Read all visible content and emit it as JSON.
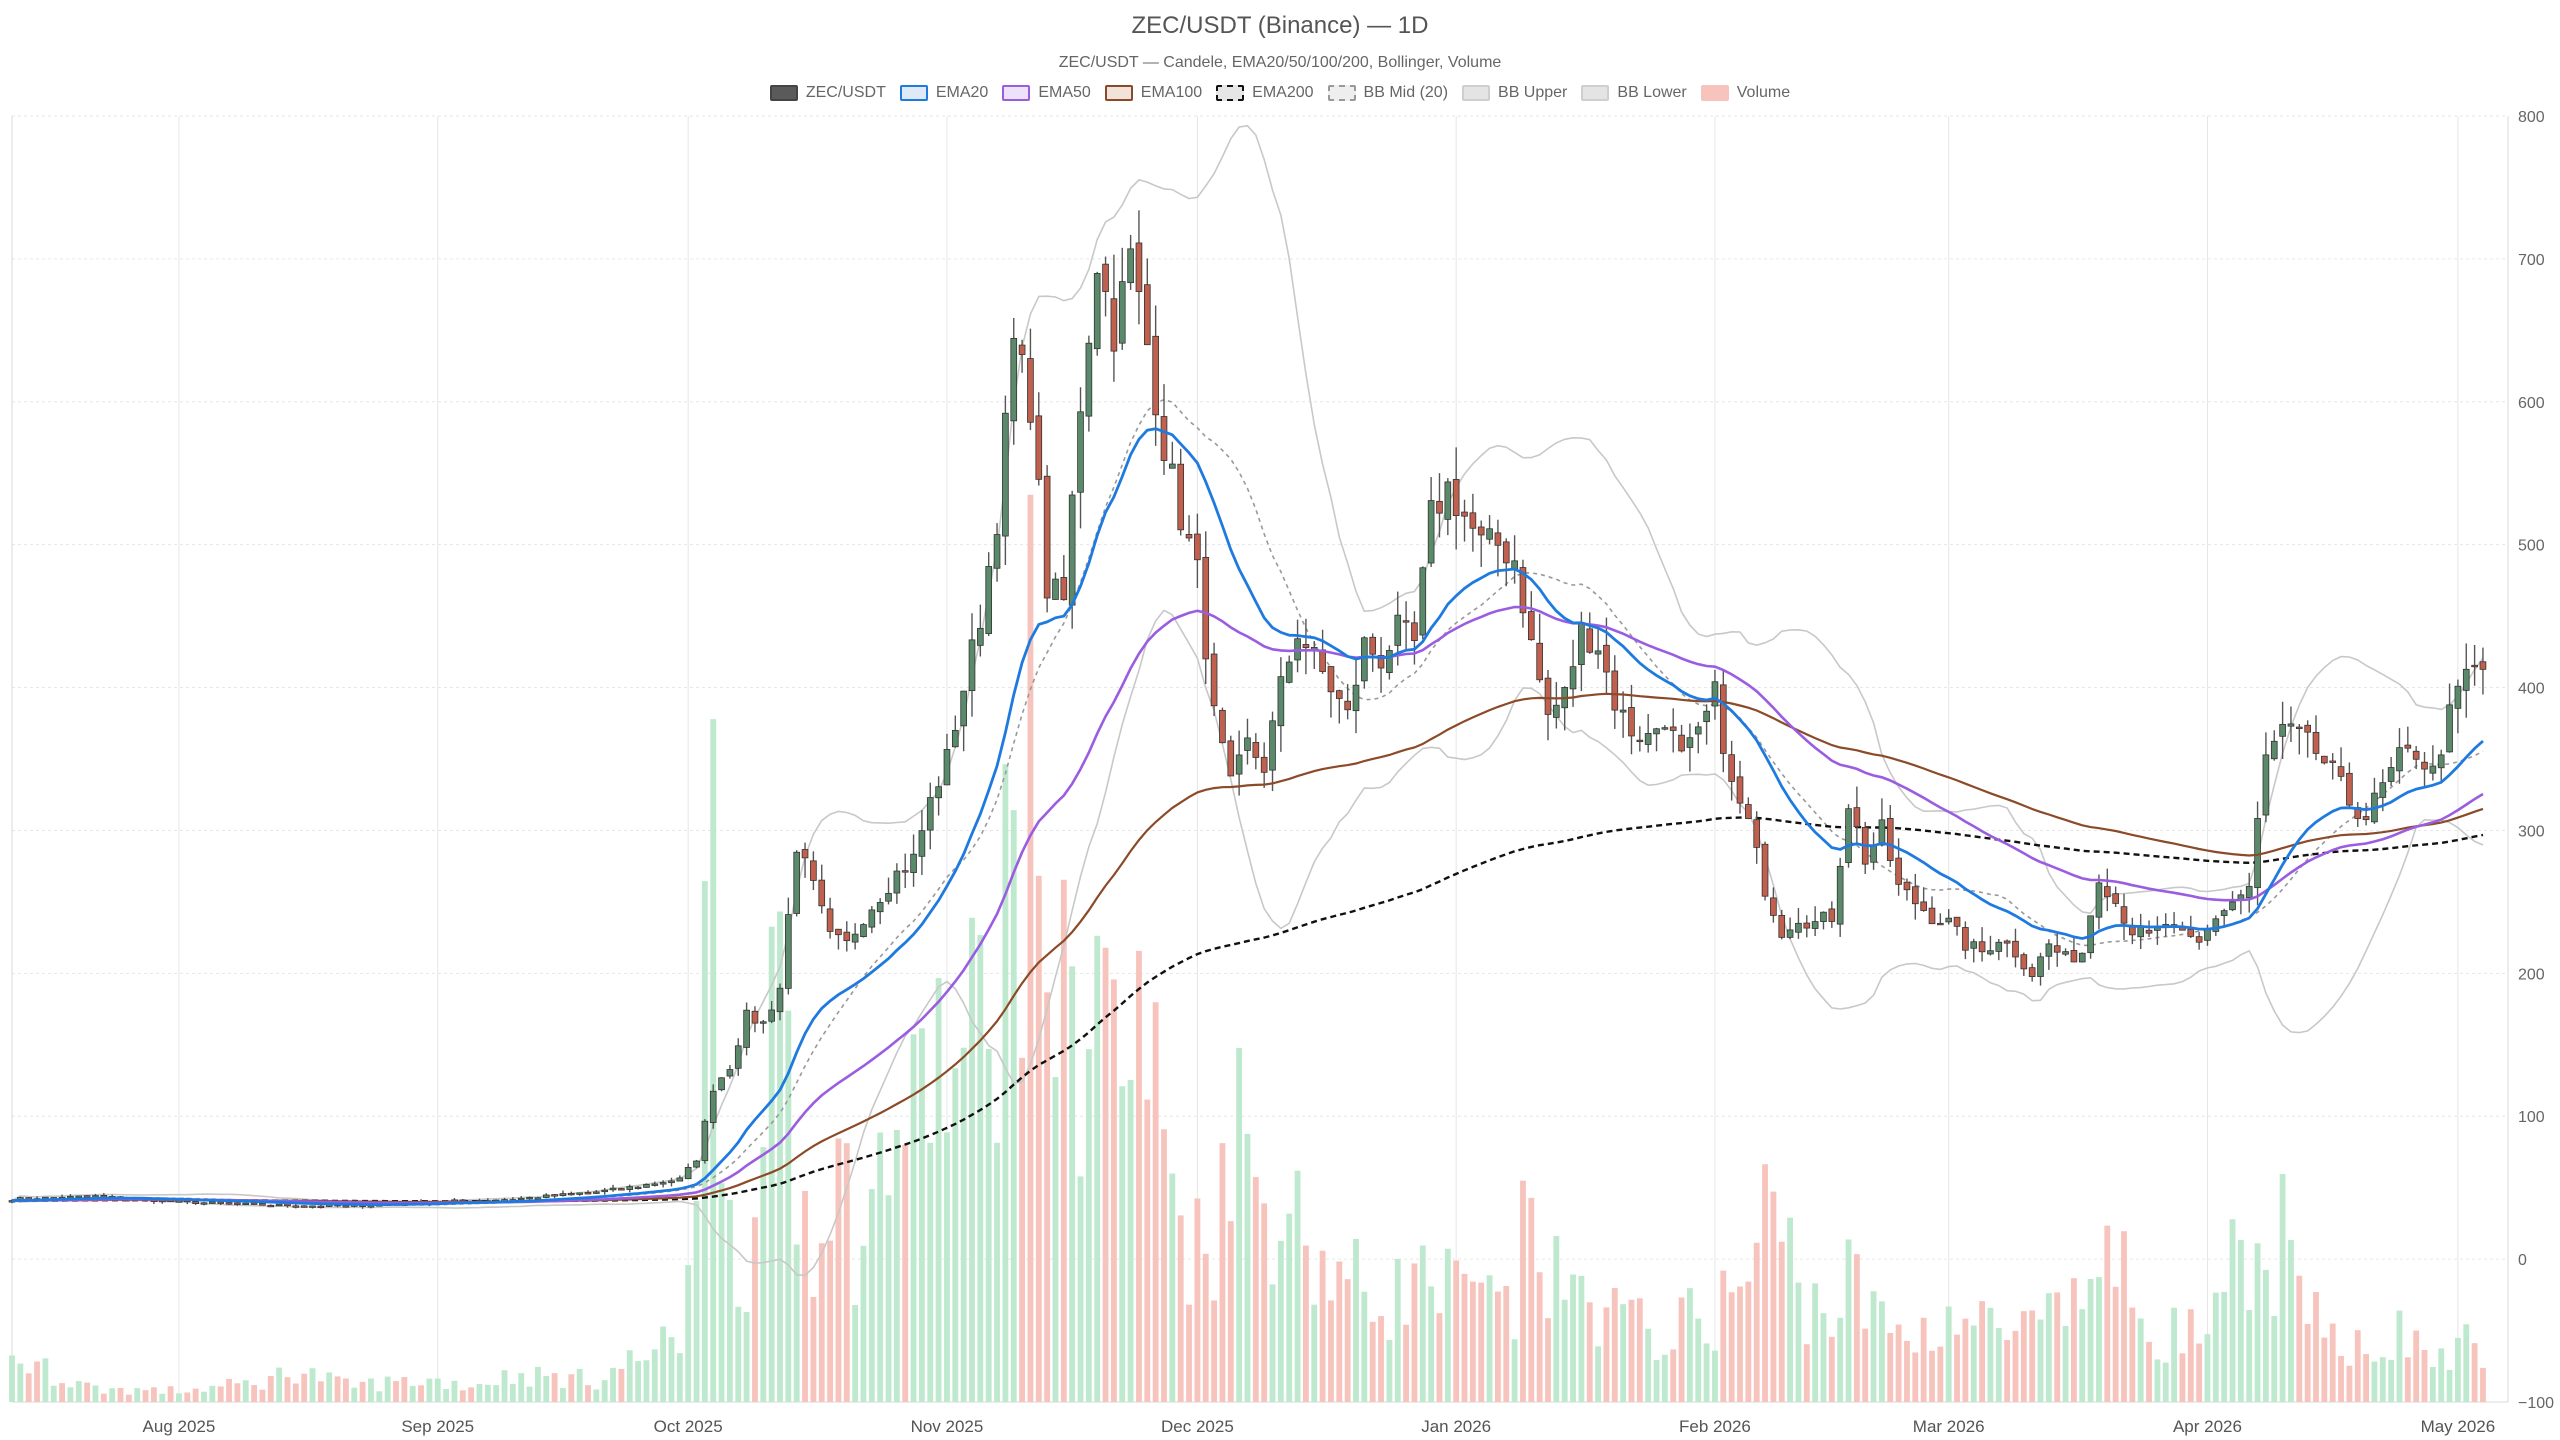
{
  "chart_data": {
    "type": "candlestick",
    "title": "ZEC/USDT (Binance) — 1D",
    "subtitle": "ZEC/USDT — Candele, EMA20/50/100/200, Bollinger, Volume",
    "y_ticks": [
      "800",
      "700",
      "600",
      "500",
      "400",
      "300",
      "200",
      "100",
      "0",
      "−100"
    ],
    "ylim": [
      -100,
      800
    ],
    "x_ticks": [
      "Aug 2025",
      "Sep 2025",
      "Oct 2025",
      "Nov 2025",
      "Dec 2025",
      "Jan 2026",
      "Feb 2026",
      "Mar 2026",
      "Apr 2026",
      "May 2026"
    ],
    "x_tick_days": [
      20,
      51,
      81,
      112,
      142,
      173,
      204,
      232,
      263,
      293
    ],
    "day_range": [
      0,
      299
    ],
    "grid": true,
    "legend_position": "top-center",
    "colors": {
      "up": "#5b8a6b",
      "down": "#c0604e",
      "wick": "#555555",
      "ema20": "#1f7ae0",
      "ema50": "#9a5de0",
      "ema100": "#8b4a28",
      "ema200": "#111111",
      "bb_mid": "#999999",
      "bb_band": "#c8c8c8",
      "vol_up": "#bfe9cf",
      "vol_down": "#f7c4bd"
    },
    "legend": [
      {
        "label": "ZEC/USDT",
        "key": "zec"
      },
      {
        "label": "EMA20",
        "key": "ema20"
      },
      {
        "label": "EMA50",
        "key": "ema50"
      },
      {
        "label": "EMA100",
        "key": "ema100"
      },
      {
        "label": "EMA200",
        "key": "ema200"
      },
      {
        "label": "BB Mid (20)",
        "key": "bbmid"
      },
      {
        "label": "BB Upper",
        "key": "bbupper"
      },
      {
        "label": "BB Lower",
        "key": "bblower"
      },
      {
        "label": "Volume",
        "key": "volume"
      }
    ],
    "price_anchors": [
      [
        0,
        42
      ],
      [
        10,
        44
      ],
      [
        20,
        40
      ],
      [
        30,
        38
      ],
      [
        40,
        37
      ],
      [
        50,
        40
      ],
      [
        60,
        42
      ],
      [
        70,
        47
      ],
      [
        75,
        51
      ],
      [
        80,
        56
      ],
      [
        82,
        70
      ],
      [
        84,
        120
      ],
      [
        86,
        135
      ],
      [
        88,
        170
      ],
      [
        90,
        165
      ],
      [
        92,
        190
      ],
      [
        94,
        290
      ],
      [
        96,
        260
      ],
      [
        98,
        225
      ],
      [
        100,
        220
      ],
      [
        102,
        240
      ],
      [
        104,
        255
      ],
      [
        106,
        270
      ],
      [
        108,
        280
      ],
      [
        110,
        320
      ],
      [
        112,
        350
      ],
      [
        114,
        400
      ],
      [
        116,
        450
      ],
      [
        118,
        520
      ],
      [
        120,
        640
      ],
      [
        122,
        600
      ],
      [
        124,
        470
      ],
      [
        126,
        460
      ],
      [
        128,
        600
      ],
      [
        130,
        700
      ],
      [
        132,
        650
      ],
      [
        134,
        700
      ],
      [
        136,
        640
      ],
      [
        138,
        570
      ],
      [
        140,
        520
      ],
      [
        142,
        480
      ],
      [
        144,
        380
      ],
      [
        146,
        330
      ],
      [
        148,
        360
      ],
      [
        150,
        345
      ],
      [
        152,
        400
      ],
      [
        154,
        440
      ],
      [
        156,
        420
      ],
      [
        158,
        400
      ],
      [
        160,
        380
      ],
      [
        162,
        430
      ],
      [
        164,
        420
      ],
      [
        166,
        440
      ],
      [
        168,
        430
      ],
      [
        170,
        520
      ],
      [
        172,
        540
      ],
      [
        174,
        520
      ],
      [
        176,
        500
      ],
      [
        178,
        500
      ],
      [
        180,
        490
      ],
      [
        182,
        430
      ],
      [
        184,
        380
      ],
      [
        186,
        395
      ],
      [
        188,
        440
      ],
      [
        190,
        430
      ],
      [
        192,
        390
      ],
      [
        194,
        370
      ],
      [
        196,
        365
      ],
      [
        198,
        380
      ],
      [
        200,
        350
      ],
      [
        202,
        365
      ],
      [
        204,
        395
      ],
      [
        206,
        330
      ],
      [
        208,
        305
      ],
      [
        210,
        260
      ],
      [
        212,
        230
      ],
      [
        214,
        240
      ],
      [
        216,
        235
      ],
      [
        218,
        240
      ],
      [
        220,
        320
      ],
      [
        222,
        280
      ],
      [
        224,
        300
      ],
      [
        226,
        260
      ],
      [
        228,
        250
      ],
      [
        230,
        240
      ],
      [
        232,
        235
      ],
      [
        234,
        220
      ],
      [
        236,
        215
      ],
      [
        238,
        225
      ],
      [
        240,
        215
      ],
      [
        242,
        200
      ],
      [
        244,
        220
      ],
      [
        246,
        210
      ],
      [
        248,
        215
      ],
      [
        250,
        270
      ],
      [
        252,
        250
      ],
      [
        254,
        230
      ],
      [
        256,
        225
      ],
      [
        258,
        235
      ],
      [
        260,
        225
      ],
      [
        262,
        220
      ],
      [
        264,
        240
      ],
      [
        266,
        250
      ],
      [
        268,
        260
      ],
      [
        270,
        350
      ],
      [
        272,
        370
      ],
      [
        274,
        365
      ],
      [
        276,
        355
      ],
      [
        278,
        340
      ],
      [
        280,
        320
      ],
      [
        282,
        310
      ],
      [
        284,
        330
      ],
      [
        286,
        350
      ],
      [
        288,
        355
      ],
      [
        290,
        340
      ],
      [
        292,
        380
      ],
      [
        294,
        410
      ],
      [
        296,
        412
      ]
    ],
    "volume_anchors": [
      [
        0,
        40
      ],
      [
        10,
        12
      ],
      [
        20,
        10
      ],
      [
        30,
        18
      ],
      [
        34,
        30
      ],
      [
        40,
        15
      ],
      [
        50,
        20
      ],
      [
        55,
        15
      ],
      [
        60,
        25
      ],
      [
        70,
        20
      ],
      [
        75,
        40
      ],
      [
        80,
        55
      ],
      [
        82,
        270
      ],
      [
        84,
        500
      ],
      [
        86,
        180
      ],
      [
        88,
        130
      ],
      [
        90,
        160
      ],
      [
        92,
        480
      ],
      [
        94,
        200
      ],
      [
        96,
        170
      ],
      [
        98,
        220
      ],
      [
        100,
        180
      ],
      [
        102,
        140
      ],
      [
        104,
        200
      ],
      [
        106,
        270
      ],
      [
        108,
        240
      ],
      [
        110,
        330
      ],
      [
        112,
        300
      ],
      [
        114,
        280
      ],
      [
        116,
        360
      ],
      [
        118,
        420
      ],
      [
        120,
        480
      ],
      [
        122,
        580
      ],
      [
        124,
        450
      ],
      [
        126,
        340
      ],
      [
        128,
        340
      ],
      [
        130,
        420
      ],
      [
        132,
        320
      ],
      [
        134,
        320
      ],
      [
        136,
        320
      ],
      [
        138,
        240
      ],
      [
        140,
        170
      ],
      [
        142,
        140
      ],
      [
        144,
        160
      ],
      [
        146,
        280
      ],
      [
        148,
        220
      ],
      [
        150,
        180
      ],
      [
        152,
        200
      ],
      [
        154,
        160
      ],
      [
        156,
        140
      ],
      [
        158,
        120
      ],
      [
        160,
        110
      ],
      [
        164,
        90
      ],
      [
        168,
        110
      ],
      [
        172,
        100
      ],
      [
        176,
        90
      ],
      [
        180,
        80
      ],
      [
        182,
        200
      ],
      [
        184,
        110
      ],
      [
        186,
        100
      ],
      [
        190,
        90
      ],
      [
        194,
        70
      ],
      [
        198,
        60
      ],
      [
        200,
        70
      ],
      [
        204,
        80
      ],
      [
        206,
        100
      ],
      [
        208,
        110
      ],
      [
        210,
        170
      ],
      [
        212,
        160
      ],
      [
        214,
        100
      ],
      [
        218,
        80
      ],
      [
        220,
        110
      ],
      [
        224,
        70
      ],
      [
        228,
        60
      ],
      [
        232,
        80
      ],
      [
        236,
        70
      ],
      [
        240,
        60
      ],
      [
        244,
        70
      ],
      [
        248,
        90
      ],
      [
        250,
        150
      ],
      [
        252,
        120
      ],
      [
        256,
        70
      ],
      [
        260,
        60
      ],
      [
        264,
        70
      ],
      [
        266,
        120
      ],
      [
        268,
        90
      ],
      [
        270,
        130
      ],
      [
        272,
        150
      ],
      [
        274,
        80
      ],
      [
        278,
        60
      ],
      [
        282,
        55
      ],
      [
        286,
        60
      ],
      [
        290,
        40
      ],
      [
        294,
        50
      ],
      [
        296,
        45
      ]
    ]
  }
}
